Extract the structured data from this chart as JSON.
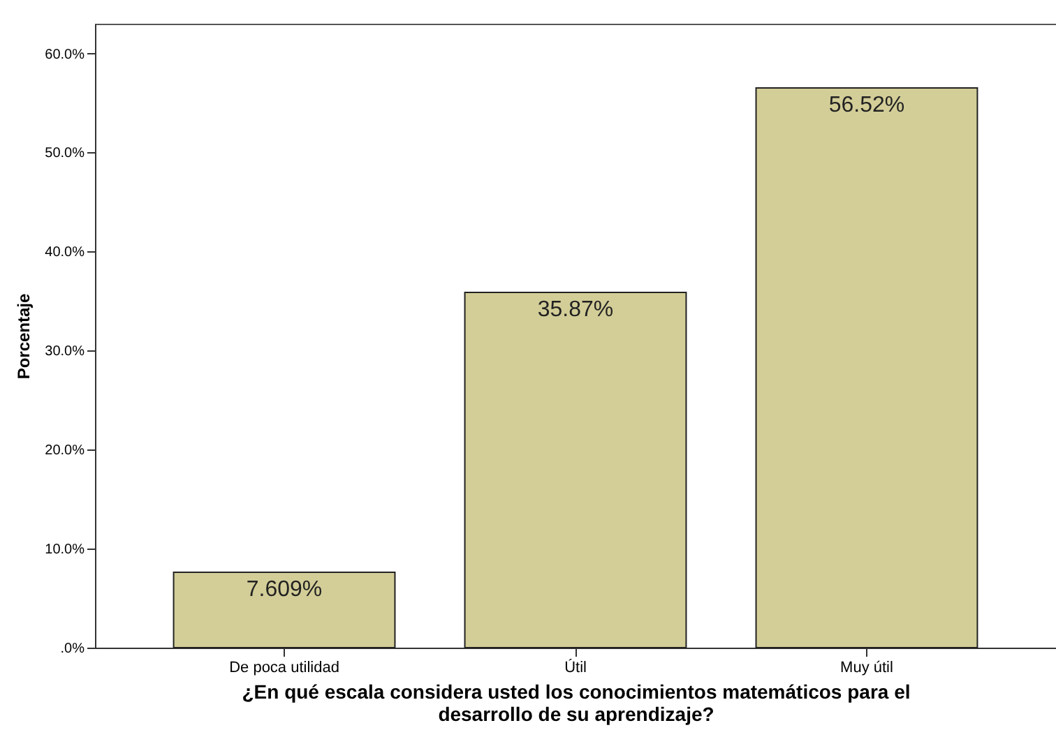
{
  "chart_data": {
    "type": "bar",
    "xlabel": "¿En qué escala considera usted los conocimientos matemáticos para el desarrollo de su aprendizaje?",
    "ylabel": "Porcentaje",
    "categories": [
      "De poca utilidad",
      "Útil",
      "Muy útil"
    ],
    "values": [
      7.609,
      35.87,
      56.52
    ],
    "value_labels": [
      "7.609%",
      "35.87%",
      "56.52%"
    ],
    "color": "#d3ce98",
    "ylim": [
      0,
      63
    ],
    "yticks": [
      {
        "value": 0,
        "label": ".0%"
      },
      {
        "value": 10,
        "label": "10.0%"
      },
      {
        "value": 20,
        "label": "20.0%"
      },
      {
        "value": 30,
        "label": "30.0%"
      },
      {
        "value": 40,
        "label": "40.0%"
      },
      {
        "value": 50,
        "label": "50.0%"
      },
      {
        "value": 60,
        "label": "60.0%"
      }
    ],
    "grid": false
  }
}
